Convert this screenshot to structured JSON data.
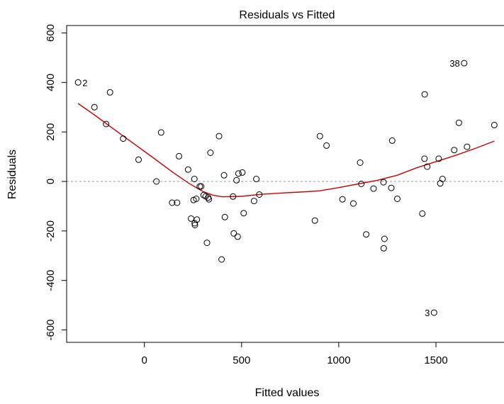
{
  "chart_data": {
    "type": "scatter",
    "title": "Residuals vs Fitted",
    "xlabel": "Fitted values",
    "ylabel": "Residuals",
    "xlim": [
      -400,
      1850
    ],
    "ylim": [
      -650,
      630
    ],
    "x_ticks": [
      0,
      500,
      1000,
      1500
    ],
    "y_ticks": [
      -600,
      -400,
      -200,
      0,
      200,
      400,
      600
    ],
    "x_tick_labels": [
      "0",
      "500",
      "1000",
      "1500"
    ],
    "y_tick_labels": [
      "-600",
      "-400",
      "-200",
      "0",
      "200",
      "400",
      "600"
    ],
    "zero_line": 0,
    "colors": {
      "points": "#000000",
      "smoother": "#cc0000",
      "zero_line": "#999999"
    },
    "points": [
      {
        "x": -341,
        "y": 400
      },
      {
        "x": -257,
        "y": 300
      },
      {
        "x": -197,
        "y": 232
      },
      {
        "x": -177,
        "y": 360
      },
      {
        "x": -109,
        "y": 173
      },
      {
        "x": -30,
        "y": 88
      },
      {
        "x": 62,
        "y": 0
      },
      {
        "x": 86,
        "y": 198
      },
      {
        "x": 143,
        "y": -86
      },
      {
        "x": 168,
        "y": -86
      },
      {
        "x": 178,
        "y": 102
      },
      {
        "x": 225,
        "y": 48
      },
      {
        "x": 240,
        "y": -150
      },
      {
        "x": 253,
        "y": -75
      },
      {
        "x": 257,
        "y": 10
      },
      {
        "x": 259,
        "y": -169
      },
      {
        "x": 260,
        "y": -176
      },
      {
        "x": 267,
        "y": -70
      },
      {
        "x": 270,
        "y": -154
      },
      {
        "x": 285,
        "y": -20
      },
      {
        "x": 292,
        "y": -20
      },
      {
        "x": 305,
        "y": -55
      },
      {
        "x": 315,
        "y": -60
      },
      {
        "x": 322,
        "y": -248
      },
      {
        "x": 328,
        "y": -65
      },
      {
        "x": 332,
        "y": -72
      },
      {
        "x": 340,
        "y": 116
      },
      {
        "x": 384,
        "y": 183
      },
      {
        "x": 397,
        "y": -315
      },
      {
        "x": 410,
        "y": 25
      },
      {
        "x": 414,
        "y": -144
      },
      {
        "x": 456,
        "y": -61
      },
      {
        "x": 460,
        "y": -210
      },
      {
        "x": 474,
        "y": 5
      },
      {
        "x": 480,
        "y": -223
      },
      {
        "x": 484,
        "y": 32
      },
      {
        "x": 504,
        "y": 36
      },
      {
        "x": 511,
        "y": -128
      },
      {
        "x": 564,
        "y": -79
      },
      {
        "x": 576,
        "y": 10
      },
      {
        "x": 591,
        "y": -53
      },
      {
        "x": 877,
        "y": -158
      },
      {
        "x": 903,
        "y": 183
      },
      {
        "x": 937,
        "y": 145
      },
      {
        "x": 1019,
        "y": -72
      },
      {
        "x": 1075,
        "y": -89
      },
      {
        "x": 1110,
        "y": 76
      },
      {
        "x": 1116,
        "y": -10
      },
      {
        "x": 1141,
        "y": -214
      },
      {
        "x": 1179,
        "y": -29
      },
      {
        "x": 1230,
        "y": -3
      },
      {
        "x": 1231,
        "y": -270
      },
      {
        "x": 1235,
        "y": -232
      },
      {
        "x": 1270,
        "y": -26
      },
      {
        "x": 1275,
        "y": 165
      },
      {
        "x": 1301,
        "y": -70
      },
      {
        "x": 1430,
        "y": -130
      },
      {
        "x": 1441,
        "y": 92
      },
      {
        "x": 1442,
        "y": 352
      },
      {
        "x": 1455,
        "y": 60
      },
      {
        "x": 1490,
        "y": -530
      },
      {
        "x": 1514,
        "y": 92
      },
      {
        "x": 1522,
        "y": -8
      },
      {
        "x": 1534,
        "y": 10
      },
      {
        "x": 1594,
        "y": 127
      },
      {
        "x": 1618,
        "y": 237
      },
      {
        "x": 1645,
        "y": 478
      },
      {
        "x": 1660,
        "y": 140
      },
      {
        "x": 1800,
        "y": 228
      }
    ],
    "annotations": [
      {
        "label": "2",
        "x": -341,
        "y": 400,
        "side": "right"
      },
      {
        "label": "38",
        "x": 1645,
        "y": 478,
        "side": "left"
      },
      {
        "label": "3",
        "x": 1490,
        "y": -530,
        "side": "left"
      }
    ],
    "smoother": [
      {
        "x": -341,
        "y": 315
      },
      {
        "x": -250,
        "y": 265
      },
      {
        "x": -150,
        "y": 207
      },
      {
        "x": -50,
        "y": 150
      },
      {
        "x": 50,
        "y": 93
      },
      {
        "x": 150,
        "y": 35
      },
      {
        "x": 230,
        "y": -8
      },
      {
        "x": 300,
        "y": -40
      },
      {
        "x": 350,
        "y": -55
      },
      {
        "x": 400,
        "y": -62
      },
      {
        "x": 500,
        "y": -60
      },
      {
        "x": 600,
        "y": -52
      },
      {
        "x": 700,
        "y": -47
      },
      {
        "x": 800,
        "y": -43
      },
      {
        "x": 900,
        "y": -38
      },
      {
        "x": 1000,
        "y": -25
      },
      {
        "x": 1100,
        "y": -10
      },
      {
        "x": 1200,
        "y": 5
      },
      {
        "x": 1300,
        "y": 25
      },
      {
        "x": 1400,
        "y": 55
      },
      {
        "x": 1500,
        "y": 80
      },
      {
        "x": 1600,
        "y": 105
      },
      {
        "x": 1700,
        "y": 133
      },
      {
        "x": 1800,
        "y": 163
      }
    ]
  }
}
